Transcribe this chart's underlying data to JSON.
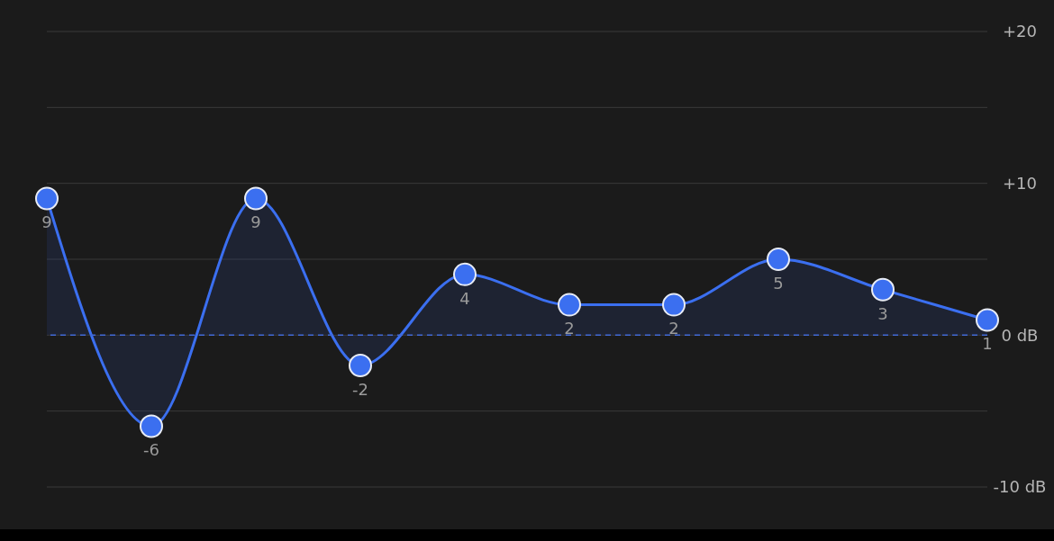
{
  "chart_data": {
    "type": "area",
    "categories": [
      null,
      null,
      null,
      null,
      null,
      null,
      null,
      null,
      null,
      null
    ],
    "series": [
      {
        "color": "#3b6ff0",
        "values": [
          9,
          -6,
          9,
          -2,
          4,
          2,
          2,
          5,
          3,
          1
        ]
      }
    ],
    "ylim": [
      -10,
      20
    ],
    "yticks": [
      {
        "value": 20,
        "label": "+20"
      },
      {
        "value": 15,
        "label": null
      },
      {
        "value": 10,
        "label": "+10"
      },
      {
        "value": 5,
        "label": null
      },
      {
        "value": 0,
        "label": "0 dB"
      },
      {
        "value": -5,
        "label": null
      },
      {
        "value": -10,
        "label": "-10 dB"
      }
    ],
    "ref_lines": [
      {
        "axis": "y",
        "value": 0,
        "color": "#4169d6",
        "line_style": "dashed"
      }
    ],
    "grid": "y",
    "tick_labels": "y",
    "marker": "circle",
    "line_style": "solid",
    "data_labels": true,
    "legend": false
  }
}
